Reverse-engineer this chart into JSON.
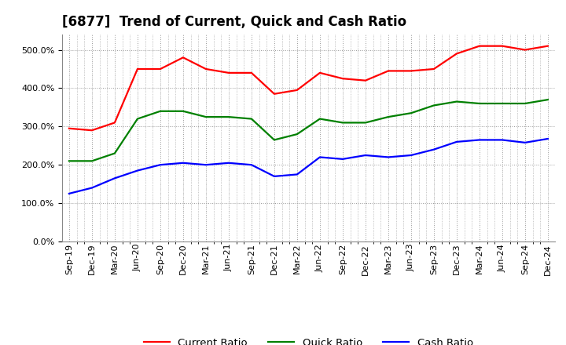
{
  "title": "[6877]  Trend of Current, Quick and Cash Ratio",
  "labels": [
    "Sep-19",
    "Dec-19",
    "Mar-20",
    "Jun-20",
    "Sep-20",
    "Dec-20",
    "Mar-21",
    "Jun-21",
    "Sep-21",
    "Dec-21",
    "Mar-22",
    "Jun-22",
    "Sep-22",
    "Dec-22",
    "Mar-23",
    "Jun-23",
    "Sep-23",
    "Dec-23",
    "Mar-24",
    "Jun-24",
    "Sep-24",
    "Dec-24"
  ],
  "current_ratio": [
    295,
    290,
    310,
    450,
    450,
    480,
    450,
    440,
    440,
    385,
    395,
    440,
    425,
    420,
    445,
    445,
    450,
    490,
    510,
    510,
    500,
    510
  ],
  "quick_ratio": [
    210,
    210,
    230,
    320,
    340,
    340,
    325,
    325,
    320,
    265,
    280,
    320,
    310,
    310,
    325,
    335,
    355,
    365,
    360,
    360,
    360,
    370
  ],
  "cash_ratio": [
    125,
    140,
    165,
    185,
    200,
    205,
    200,
    205,
    200,
    170,
    175,
    220,
    215,
    225,
    220,
    225,
    240,
    260,
    265,
    265,
    258,
    268
  ],
  "current_color": "#ff0000",
  "quick_color": "#008000",
  "cash_color": "#0000ff",
  "ylim": [
    0,
    540
  ],
  "yticks": [
    0,
    100,
    200,
    300,
    400,
    500
  ],
  "background_color": "#ffffff",
  "grid_color": "#999999",
  "title_fontsize": 12,
  "legend_fontsize": 9.5,
  "tick_fontsize": 8
}
